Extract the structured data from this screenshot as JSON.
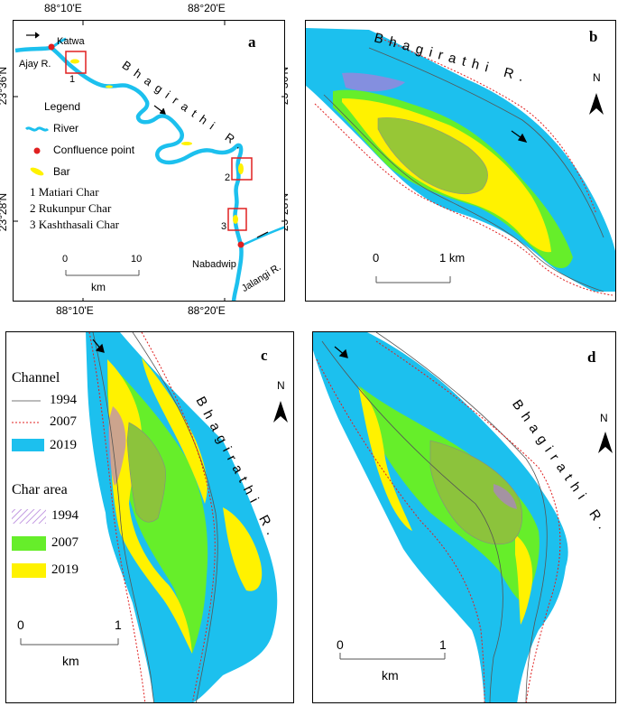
{
  "colors": {
    "river": "#1cc0ee",
    "bar": "#fff200",
    "char2007": "#66ee2a",
    "char1994": "#b07ad8",
    "red": "#e02020",
    "line1994": "#777777"
  },
  "panel_a": {
    "label": "a",
    "top_coords": [
      "88°10'E",
      "88°20'E"
    ],
    "bottom_coords": [
      "88°10'E",
      "88°20'E"
    ],
    "left_coords": [
      "23°36'N",
      "23°28'N"
    ],
    "right_coords": [
      "23°36'N",
      "23°28'N"
    ],
    "places": {
      "katwa": "Katwa",
      "ajay": "Ajay R.",
      "nabadwip": "Nabadwip",
      "jalangi": "Jalangi R."
    },
    "river_label": "Bhagirathi R.",
    "box_numbers": [
      "1",
      "2",
      "3"
    ],
    "legend": {
      "title": "Legend",
      "items": [
        "River",
        "Confluence point",
        "Bar"
      ],
      "chars": [
        "1 Matiari Char",
        "2 Rukunpur Char",
        "3 Kashthasali Char"
      ]
    },
    "scale": {
      "min": "0",
      "max": "10",
      "unit": "km"
    }
  },
  "panel_b": {
    "label": "b",
    "river_label": "Bhagirathi R.",
    "north": "N",
    "scale": {
      "min": "0",
      "max": "1 km"
    }
  },
  "panel_c": {
    "label": "c",
    "river_label": "Bhagirathi R.",
    "north": "N",
    "legend": {
      "channel_title": "Channel",
      "channel_items": [
        "1994",
        "2007",
        "2019"
      ],
      "char_title": "Char area",
      "char_items": [
        "1994",
        "2007",
        "2019"
      ]
    },
    "scale": {
      "min": "0",
      "max": "1",
      "unit": "km"
    }
  },
  "panel_d": {
    "label": "d",
    "river_label": "Bhagirathi R.",
    "north": "N",
    "scale": {
      "min": "0",
      "max": "1",
      "unit": "km"
    }
  }
}
